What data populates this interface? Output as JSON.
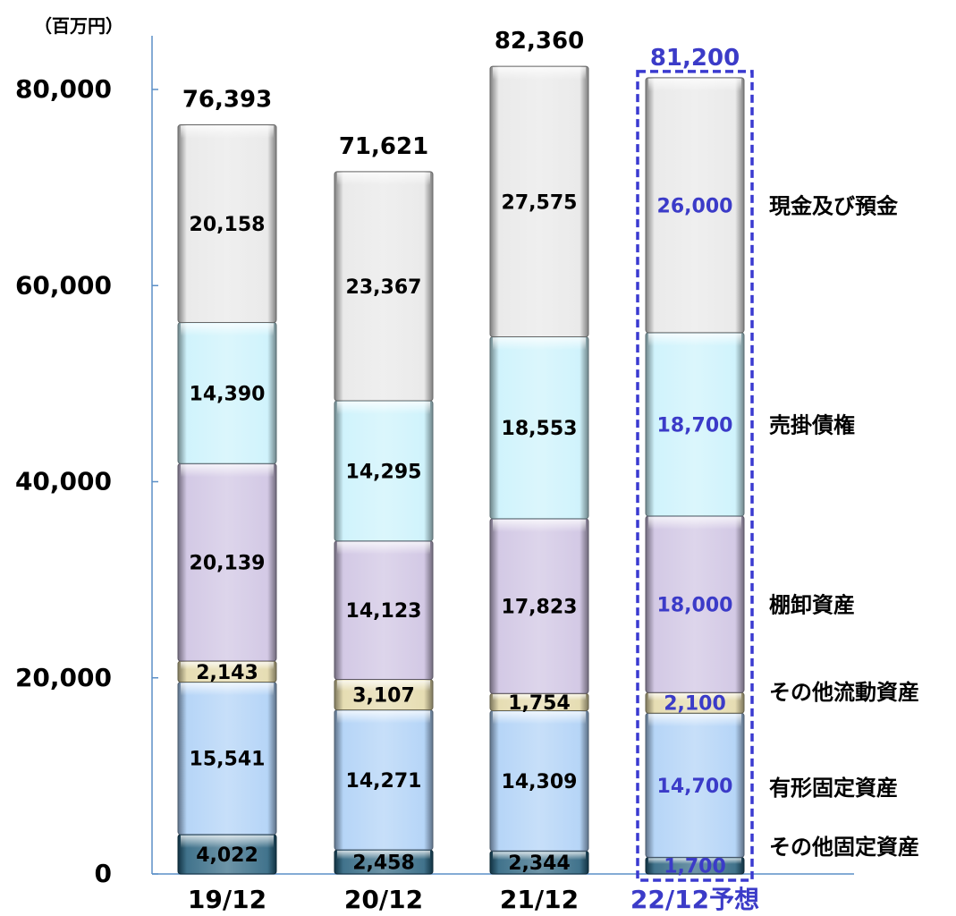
{
  "chart_data": {
    "type": "bar",
    "stacked": true,
    "unit_label": "（百万円）",
    "categories": [
      "19/12",
      "20/12",
      "21/12",
      "22/12予想"
    ],
    "forecast_index": 3,
    "ylim": [
      0,
      80000
    ],
    "y_ticks": [
      "0",
      "20,000",
      "40,000",
      "60,000",
      "80,000"
    ],
    "y_tick_values": [
      0,
      20000,
      40000,
      60000,
      80000
    ],
    "totals": [
      76393,
      71621,
      82360,
      81200
    ],
    "total_labels": [
      "76,393",
      "71,621",
      "82,360",
      "81,200"
    ],
    "series": [
      {
        "name": "その他固定資産",
        "values": [
          4022,
          2458,
          2344,
          1700
        ],
        "labels": [
          "4,022",
          "2,458",
          "2,344",
          "1,700"
        ],
        "color": "#1f5a78"
      },
      {
        "name": "有形固定資産",
        "values": [
          15541,
          14271,
          14309,
          14700
        ],
        "labels": [
          "15,541",
          "14,271",
          "14,309",
          "14,700"
        ],
        "color": "#a9cdf5"
      },
      {
        "name": "その他流動資産",
        "values": [
          2143,
          3107,
          1754,
          2100
        ],
        "labels": [
          "2,143",
          "3,107",
          "1,754",
          "2,100"
        ],
        "color": "#e2d7a6"
      },
      {
        "name": "棚卸資産",
        "values": [
          20139,
          14123,
          17823,
          18000
        ],
        "labels": [
          "20,139",
          "14,123",
          "17,823",
          "18,000"
        ],
        "color": "#cbbfe0"
      },
      {
        "name": "売掛債権",
        "values": [
          14390,
          14295,
          18553,
          18700
        ],
        "labels": [
          "14,390",
          "14,295",
          "18,553",
          "18,700"
        ],
        "color": "#c8f1fb"
      },
      {
        "name": "現金及び預金",
        "values": [
          20158,
          23367,
          27575,
          26000
        ],
        "labels": [
          "20,158",
          "23,367",
          "27,575",
          "26,000"
        ],
        "color": "#e6e6e6"
      }
    ],
    "colors": {
      "text": "#000000",
      "forecast_text": "#3b3bc8",
      "forecast_border": "#3a3ad0",
      "axis": "#5b8fc7"
    },
    "grid": false
  }
}
